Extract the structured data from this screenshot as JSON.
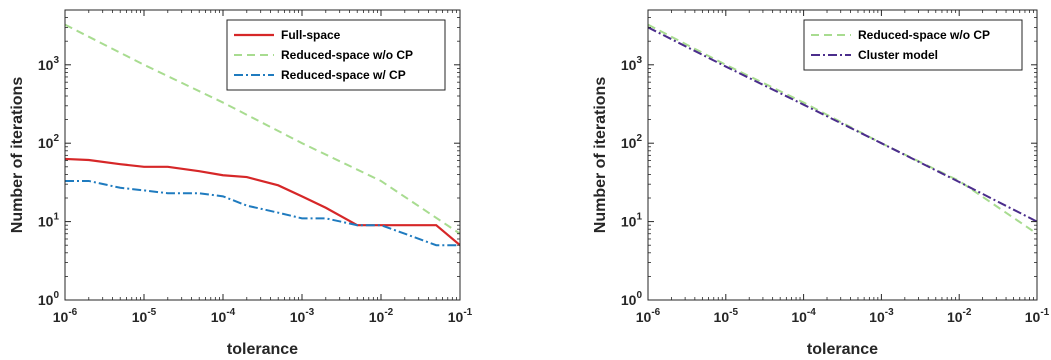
{
  "chart_data": [
    {
      "type": "line",
      "xlabel": "tolerance",
      "ylabel": "Number of iterations",
      "xscale": "log",
      "yscale": "log",
      "xlim": [
        1e-06,
        0.1
      ],
      "ylim": [
        1,
        5000
      ],
      "xticks": [
        {
          "base": "10",
          "exp": "-6"
        },
        {
          "base": "10",
          "exp": "-5"
        },
        {
          "base": "10",
          "exp": "-4"
        },
        {
          "base": "10",
          "exp": "-3"
        },
        {
          "base": "10",
          "exp": "-2"
        },
        {
          "base": "10",
          "exp": "-1"
        }
      ],
      "yticks": [
        {
          "base": "10",
          "exp": "0"
        },
        {
          "base": "10",
          "exp": "1"
        },
        {
          "base": "10",
          "exp": "2"
        },
        {
          "base": "10",
          "exp": "3"
        }
      ],
      "legend_position": "top-right",
      "series": [
        {
          "name": "Full-space",
          "color": "#d62728",
          "dash": "solid",
          "points": [
            [
              1e-06,
              63
            ],
            [
              2e-06,
              61
            ],
            [
              5e-06,
              54
            ],
            [
              1e-05,
              50
            ],
            [
              2e-05,
              50
            ],
            [
              5e-05,
              44
            ],
            [
              0.0001,
              39
            ],
            [
              0.0002,
              37
            ],
            [
              0.0005,
              29
            ],
            [
              0.001,
              21
            ],
            [
              0.002,
              15
            ],
            [
              0.005,
              9
            ],
            [
              0.01,
              9
            ],
            [
              0.02,
              9
            ],
            [
              0.05,
              9
            ],
            [
              0.1,
              5
            ]
          ]
        },
        {
          "name": "Reduced-space w/o CP",
          "color": "#a8dc90",
          "dash": "dashed",
          "points": [
            [
              1e-06,
              3250
            ],
            [
              1e-05,
              1000
            ],
            [
              0.0001,
              330
            ],
            [
              0.001,
              100
            ],
            [
              0.01,
              33
            ],
            [
              0.1,
              7
            ]
          ]
        },
        {
          "name": "Reduced-space w/ CP",
          "color": "#1f7bbf",
          "dash": "dashdot",
          "points": [
            [
              1e-06,
              33
            ],
            [
              2e-06,
              33
            ],
            [
              5e-06,
              27
            ],
            [
              1e-05,
              25
            ],
            [
              2e-05,
              23
            ],
            [
              5e-05,
              23
            ],
            [
              0.0001,
              21
            ],
            [
              0.0002,
              16
            ],
            [
              0.0005,
              13
            ],
            [
              0.001,
              11
            ],
            [
              0.002,
              11
            ],
            [
              0.005,
              9
            ],
            [
              0.01,
              9
            ],
            [
              0.02,
              7
            ],
            [
              0.05,
              5
            ],
            [
              0.1,
              5
            ]
          ]
        }
      ]
    },
    {
      "type": "line",
      "xlabel": "tolerance",
      "ylabel": "Number of iterations",
      "xscale": "log",
      "yscale": "log",
      "xlim": [
        1e-06,
        0.1
      ],
      "ylim": [
        1,
        5000
      ],
      "xticks": [
        {
          "base": "10",
          "exp": "-6"
        },
        {
          "base": "10",
          "exp": "-5"
        },
        {
          "base": "10",
          "exp": "-4"
        },
        {
          "base": "10",
          "exp": "-3"
        },
        {
          "base": "10",
          "exp": "-2"
        },
        {
          "base": "10",
          "exp": "-1"
        }
      ],
      "yticks": [
        {
          "base": "10",
          "exp": "0"
        },
        {
          "base": "10",
          "exp": "1"
        },
        {
          "base": "10",
          "exp": "2"
        },
        {
          "base": "10",
          "exp": "3"
        }
      ],
      "legend_position": "top-right",
      "series": [
        {
          "name": "Reduced-space w/o CP",
          "color": "#a8dc90",
          "dash": "dashed",
          "points": [
            [
              1e-06,
              3250
            ],
            [
              1e-05,
              1000
            ],
            [
              0.0001,
              330
            ],
            [
              0.001,
              100
            ],
            [
              0.01,
              33
            ],
            [
              0.1,
              7
            ]
          ]
        },
        {
          "name": "Cluster model",
          "color": "#4b2d8c",
          "dash": "dashdot",
          "points": [
            [
              1e-06,
              3000
            ],
            [
              1e-05,
              950
            ],
            [
              0.0001,
              310
            ],
            [
              0.001,
              100
            ],
            [
              0.01,
              32
            ],
            [
              0.1,
              10
            ]
          ]
        }
      ]
    }
  ]
}
